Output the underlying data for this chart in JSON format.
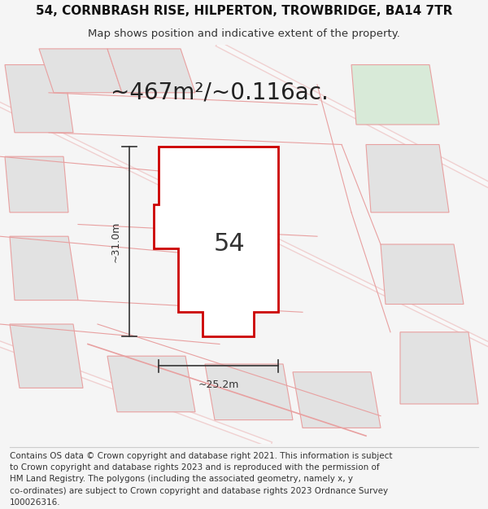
{
  "title_line1": "54, CORNBRASH RISE, HILPERTON, TROWBRIDGE, BA14 7TR",
  "title_line2": "Map shows position and indicative extent of the property.",
  "area_text": "~467m²/~0.116ac.",
  "label_54": "54",
  "dim_width": "~25.2m",
  "dim_height": "~31.0m",
  "footer_lines": [
    "Contains OS data © Crown copyright and database right 2021. This information is subject",
    "to Crown copyright and database rights 2023 and is reproduced with the permission of",
    "HM Land Registry. The polygons (including the associated geometry, namely x, y",
    "co-ordinates) are subject to Crown copyright and database rights 2023 Ordnance Survey",
    "100026316."
  ],
  "bg_color": "#f5f5f5",
  "map_bg": "#eeeeee",
  "plot_fill": "#ffffff",
  "plot_edge": "#cc0000",
  "other_plot_fill": "#e2e2e2",
  "other_plot_edge": "#e8a0a0",
  "green_fill": "#d8ead8",
  "dim_color": "#333333",
  "title_fontsize": 11,
  "subtitle_fontsize": 9.5,
  "area_fontsize": 20,
  "label_fontsize": 22,
  "footer_fontsize": 7.5
}
